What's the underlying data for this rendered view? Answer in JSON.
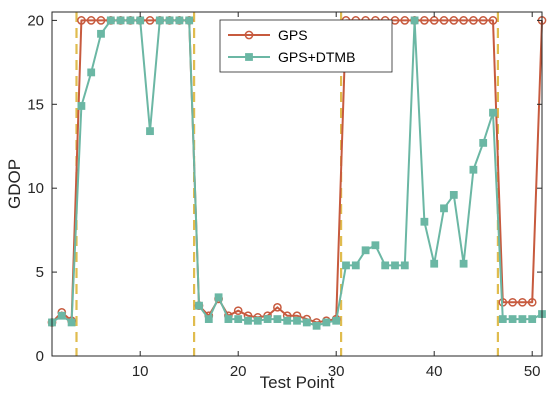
{
  "chart_data": {
    "type": "line",
    "xlabel": "Test Point",
    "ylabel": "GDOP",
    "xlim": [
      1,
      51
    ],
    "ylim": [
      0,
      20.5
    ],
    "xticks": [
      10,
      20,
      30,
      40,
      50
    ],
    "yticks": [
      0,
      5,
      10,
      15,
      20
    ],
    "legend_position": "top-center",
    "grid": false,
    "vertical_lines": [
      3.5,
      15.5,
      30.5,
      46.5
    ],
    "colors": {
      "gps": "#c75a3e",
      "gps_dtmb": "#6bb7a4",
      "vlines": "#e0bc4e",
      "axis": "#262626"
    },
    "series": [
      {
        "name": "GPS",
        "marker": "circle",
        "x": [
          1,
          2,
          3,
          4,
          5,
          6,
          7,
          8,
          9,
          10,
          11,
          12,
          13,
          14,
          15,
          16,
          17,
          18,
          19,
          20,
          21,
          22,
          23,
          24,
          25,
          26,
          27,
          28,
          29,
          30,
          31,
          32,
          33,
          34,
          35,
          36,
          37,
          38,
          39,
          40,
          41,
          42,
          43,
          44,
          45,
          46,
          47,
          48,
          49,
          50,
          51
        ],
        "values": [
          2.0,
          2.6,
          2.1,
          20,
          20,
          20,
          20,
          20,
          20,
          20,
          20,
          20,
          20,
          20,
          20,
          3.0,
          2.4,
          3.4,
          2.4,
          2.7,
          2.4,
          2.3,
          2.4,
          2.9,
          2.4,
          2.4,
          2.2,
          2.0,
          2.1,
          2.2,
          20,
          20,
          20,
          20,
          20,
          20,
          20,
          20,
          20,
          20,
          20,
          20,
          20,
          20,
          20,
          20,
          3.2,
          3.2,
          3.2,
          3.2,
          20
        ]
      },
      {
        "name": "GPS+DTMB",
        "marker": "square",
        "x": [
          1,
          2,
          3,
          4,
          5,
          6,
          7,
          8,
          9,
          10,
          11,
          12,
          13,
          14,
          15,
          16,
          17,
          18,
          19,
          20,
          21,
          22,
          23,
          24,
          25,
          26,
          27,
          28,
          29,
          30,
          31,
          32,
          33,
          34,
          35,
          36,
          37,
          38,
          39,
          40,
          41,
          42,
          43,
          44,
          45,
          46,
          47,
          48,
          49,
          50,
          51
        ],
        "values": [
          2.0,
          2.4,
          2.0,
          14.9,
          16.9,
          19.2,
          20,
          20,
          20,
          20,
          13.4,
          20,
          20,
          20,
          20,
          3.0,
          2.2,
          3.5,
          2.2,
          2.2,
          2.1,
          2.1,
          2.2,
          2.2,
          2.1,
          2.1,
          2.0,
          1.8,
          2.0,
          2.1,
          5.4,
          5.4,
          6.3,
          6.6,
          5.4,
          5.4,
          5.4,
          20,
          8.0,
          5.5,
          8.8,
          9.6,
          5.5,
          11.1,
          12.7,
          14.5,
          2.2,
          2.2,
          2.2,
          2.2,
          2.5
        ]
      }
    ]
  }
}
